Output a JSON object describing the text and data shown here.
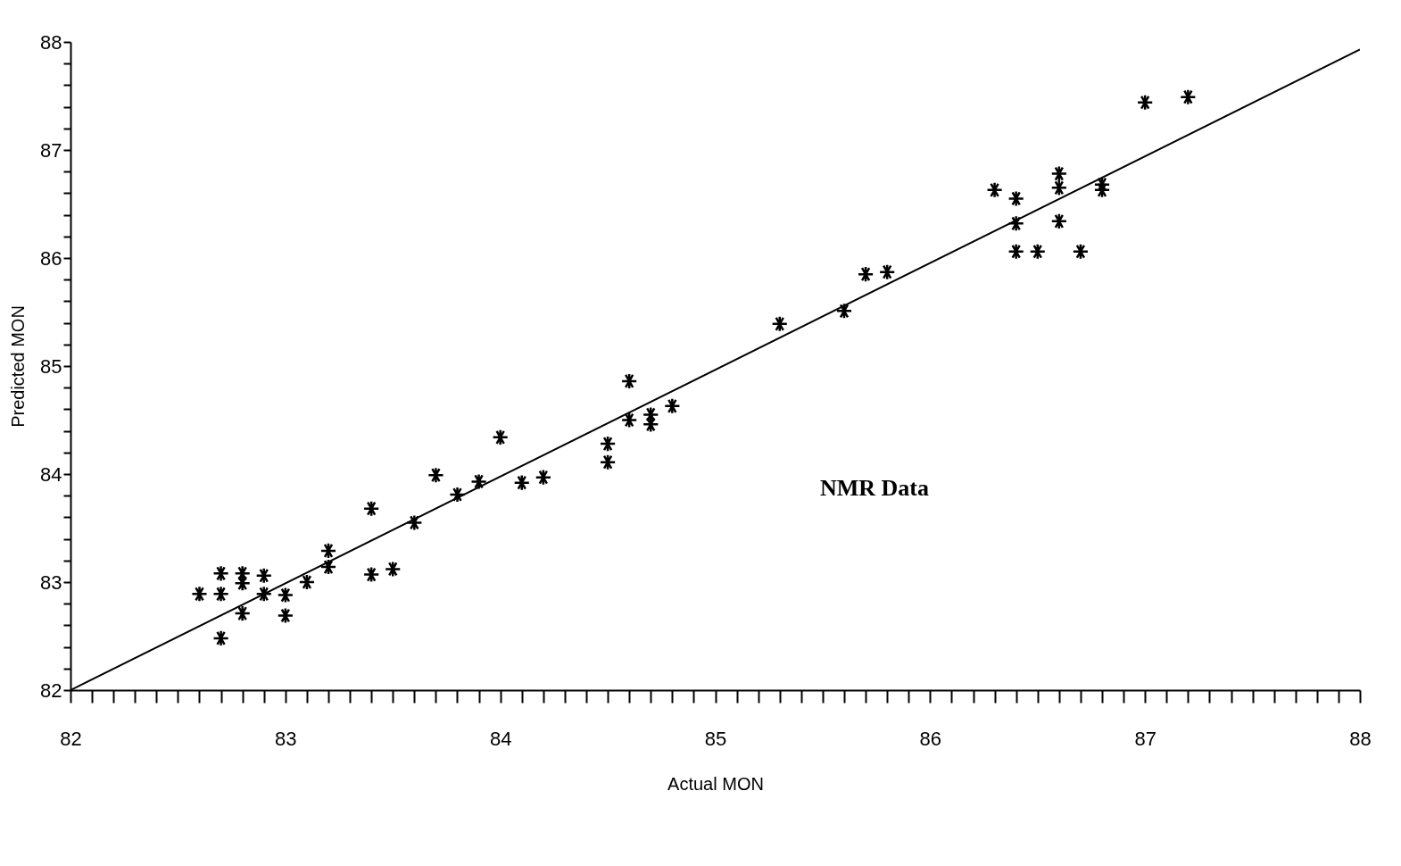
{
  "chart_data": {
    "type": "scatter",
    "xlabel": "Actual MON",
    "ylabel": "Predicted MON",
    "marker": "cross",
    "grid": false,
    "xlim": [
      82,
      88
    ],
    "ylim": [
      82,
      88
    ],
    "xticks": [
      82,
      {
        "value": 82.1,
        "label": null
      },
      {
        "value": 82.2,
        "label": null
      },
      {
        "value": 82.3,
        "label": null
      },
      {
        "value": 82.4,
        "label": null
      },
      {
        "value": 82.5,
        "label": null
      },
      {
        "value": 82.6,
        "label": null
      },
      {
        "value": 82.7,
        "label": null
      },
      {
        "value": 82.8,
        "label": null
      },
      {
        "value": 82.9,
        "label": null
      },
      83,
      {
        "value": 83.1,
        "label": null
      },
      {
        "value": 83.2,
        "label": null
      },
      {
        "value": 83.3,
        "label": null
      },
      {
        "value": 83.4,
        "label": null
      },
      {
        "value": 83.5,
        "label": null
      },
      {
        "value": 83.6,
        "label": null
      },
      {
        "value": 83.7,
        "label": null
      },
      {
        "value": 83.8,
        "label": null
      },
      {
        "value": 83.9,
        "label": null
      },
      84,
      {
        "value": 84.1,
        "label": null
      },
      {
        "value": 84.2,
        "label": null
      },
      {
        "value": 84.3,
        "label": null
      },
      {
        "value": 84.4,
        "label": null
      },
      {
        "value": 84.5,
        "label": null
      },
      {
        "value": 84.6,
        "label": null
      },
      {
        "value": 84.7,
        "label": null
      },
      {
        "value": 84.8,
        "label": null
      },
      {
        "value": 84.9,
        "label": null
      },
      85,
      {
        "value": 85.1,
        "label": null
      },
      {
        "value": 85.2,
        "label": null
      },
      {
        "value": 85.3,
        "label": null
      },
      {
        "value": 85.4,
        "label": null
      },
      {
        "value": 85.5,
        "label": null
      },
      {
        "value": 85.6,
        "label": null
      },
      {
        "value": 85.7,
        "label": null
      },
      {
        "value": 85.8,
        "label": null
      },
      {
        "value": 85.9,
        "label": null
      },
      86,
      {
        "value": 86.1,
        "label": null
      },
      {
        "value": 86.2,
        "label": null
      },
      {
        "value": 86.3,
        "label": null
      },
      {
        "value": 86.4,
        "label": null
      },
      {
        "value": 86.5,
        "label": null
      },
      {
        "value": 86.6,
        "label": null
      },
      {
        "value": 86.7,
        "label": null
      },
      {
        "value": 86.8,
        "label": null
      },
      {
        "value": 86.9,
        "label": null
      },
      87,
      {
        "value": 87.1,
        "label": null
      },
      {
        "value": 87.2,
        "label": null
      },
      {
        "value": 87.3,
        "label": null
      },
      {
        "value": 87.4,
        "label": null
      },
      {
        "value": 87.5,
        "label": null
      },
      {
        "value": 87.6,
        "label": null
      },
      {
        "value": 87.7,
        "label": null
      },
      {
        "value": 87.8,
        "label": null
      },
      {
        "value": 87.9,
        "label": null
      },
      88
    ],
    "yticks": [
      82,
      {
        "value": 82.2,
        "label": null
      },
      {
        "value": 82.4,
        "label": null
      },
      {
        "value": 82.6,
        "label": null
      },
      {
        "value": 82.8,
        "label": null
      },
      83,
      {
        "value": 83.2,
        "label": null
      },
      {
        "value": 83.4,
        "label": null
      },
      {
        "value": 83.6,
        "label": null
      },
      {
        "value": 83.8,
        "label": null
      },
      84,
      {
        "value": 84.2,
        "label": null
      },
      {
        "value": 84.4,
        "label": null
      },
      {
        "value": 84.6,
        "label": null
      },
      {
        "value": 84.8,
        "label": null
      },
      85,
      {
        "value": 85.2,
        "label": null
      },
      {
        "value": 85.4,
        "label": null
      },
      {
        "value": 85.6,
        "label": null
      },
      {
        "value": 85.8,
        "label": null
      },
      86,
      {
        "value": 86.2,
        "label": null
      },
      {
        "value": 86.4,
        "label": null
      },
      {
        "value": 86.6,
        "label": null
      },
      {
        "value": 86.8,
        "label": null
      },
      87,
      {
        "value": 87.2,
        "label": null
      },
      {
        "value": 87.4,
        "label": null
      },
      {
        "value": 87.6,
        "label": null
      },
      {
        "value": 87.8,
        "label": null
      },
      88
    ],
    "annotations": [
      "NMR Data"
    ],
    "series": [
      {
        "color": "#000000",
        "x": [
          82.6,
          82.7,
          82.7,
          82.7,
          82.8,
          82.8,
          82.8,
          82.9,
          82.9,
          83.0,
          83.0,
          83.1,
          83.2,
          83.2,
          83.4,
          83.4,
          83.5,
          83.6,
          83.7,
          83.8,
          83.9,
          84.0,
          84.1,
          84.2,
          84.5,
          84.5,
          84.6,
          84.6,
          84.7,
          84.7,
          84.8,
          85.3,
          85.6,
          85.7,
          85.8,
          86.3,
          86.4,
          86.4,
          86.4,
          86.5,
          86.6,
          86.6,
          86.6,
          86.7,
          86.8,
          86.8,
          87.0,
          87.2
        ],
        "values": [
          82.89,
          83.08,
          82.89,
          82.48,
          83.08,
          82.99,
          82.71,
          83.06,
          82.89,
          82.88,
          82.69,
          83.0,
          83.29,
          83.14,
          83.68,
          83.07,
          83.12,
          83.55,
          83.99,
          83.81,
          83.93,
          84.34,
          83.92,
          83.97,
          84.28,
          84.11,
          84.86,
          84.5,
          84.55,
          84.46,
          84.63,
          85.39,
          85.51,
          85.85,
          85.87,
          86.63,
          86.55,
          86.32,
          86.06,
          86.06,
          86.78,
          86.65,
          86.34,
          86.06,
          86.68,
          86.63,
          87.44,
          87.49
        ]
      },
      {
        "type": "line",
        "marker": "none",
        "color": "#000000",
        "x": [
          82,
          88
        ],
        "values": [
          82.0,
          87.93
        ]
      }
    ]
  }
}
